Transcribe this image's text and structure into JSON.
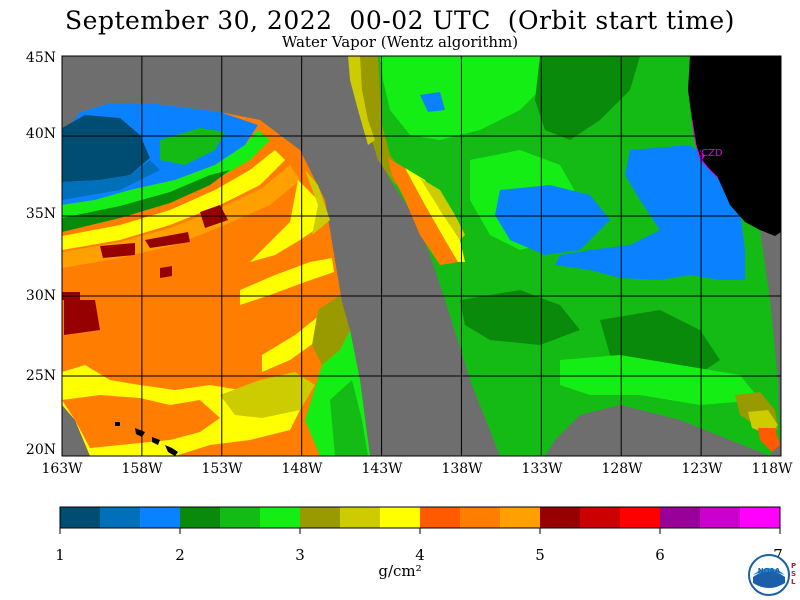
{
  "header": {
    "title": "September 30, 2022  00-02 UTC  (Orbit start time)",
    "subtitle": "Water Vapor (Wentz algorithm)"
  },
  "map": {
    "lat_labels": [
      "45N",
      "40N",
      "35N",
      "30N",
      "25N",
      "20N"
    ],
    "lon_labels": [
      "163W",
      "158W",
      "153W",
      "148W",
      "143W",
      "138W",
      "133W",
      "128W",
      "123W",
      "118W"
    ],
    "lat_range": [
      20,
      45
    ],
    "lon_range": [
      -163,
      -118
    ],
    "station_label": "CZD",
    "colors": {
      "no_data": "#6e6e6e",
      "land": "#000000",
      "grid": "#000000",
      "station": "#e000e0"
    }
  },
  "colorbar": {
    "tick_labels": [
      "1",
      "2",
      "3",
      "4",
      "5",
      "6",
      "7"
    ],
    "units": "g/cm²",
    "colors": [
      "#004d73",
      "#0070bb",
      "#0a82ff",
      "#0a8a0a",
      "#14bb14",
      "#14ee14",
      "#999900",
      "#cccc00",
      "#ffff00",
      "#ff5a00",
      "#ff7d00",
      "#ff9f00",
      "#960000",
      "#cc0000",
      "#ff0000",
      "#990099",
      "#cc00cc",
      "#ff00ff"
    ]
  },
  "logo": {
    "text": "NOAA",
    "side_text": "PSL"
  }
}
